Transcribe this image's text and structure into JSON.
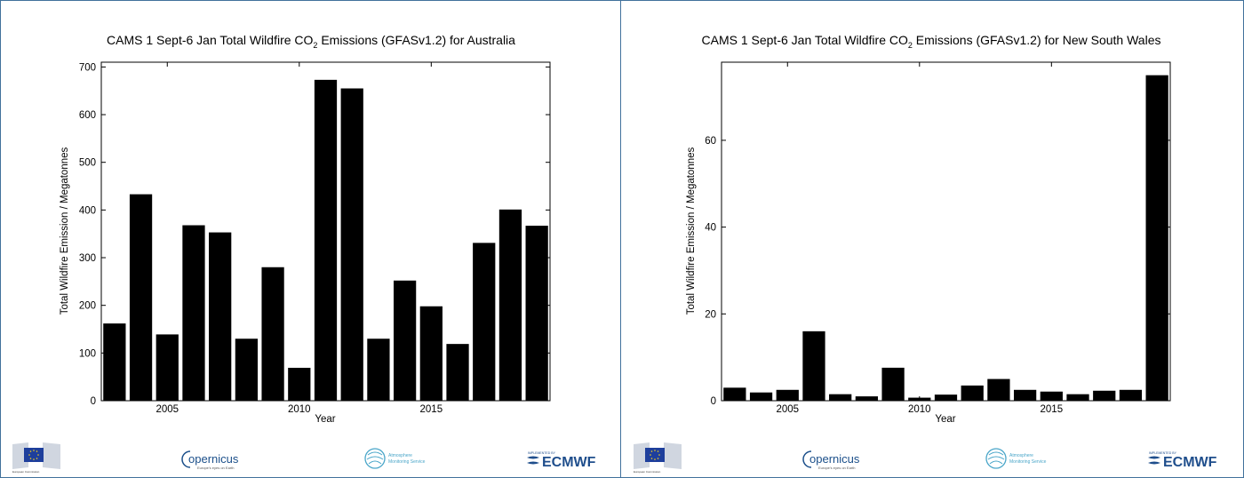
{
  "chart_data": [
    {
      "type": "bar",
      "title_main": "CAMS 1 Sept-6 Jan Total Wildfire CO",
      "title_sub": "2",
      "title_rest": " Emissions (GFASv1.2) for Australia",
      "xlabel": "Year",
      "ylabel": "Total Wildfire Emission / Megatonnes",
      "x": [
        2003,
        2004,
        2005,
        2006,
        2007,
        2008,
        2009,
        2010,
        2011,
        2012,
        2013,
        2014,
        2015,
        2016,
        2017,
        2018,
        2019
      ],
      "values": [
        162,
        433,
        139,
        368,
        353,
        130,
        280,
        69,
        673,
        655,
        130,
        252,
        198,
        119,
        331,
        401,
        367
      ],
      "xlim": [
        2002.5,
        2019.5
      ],
      "ylim": [
        0,
        710
      ],
      "xticks": [
        2005,
        2010,
        2015
      ],
      "yticks": [
        0,
        100,
        200,
        300,
        400,
        500,
        600,
        700
      ],
      "bar_color": "#000000",
      "grid": false
    },
    {
      "type": "bar",
      "title_main": "CAMS 1 Sept-6 Jan Total Wildfire CO",
      "title_sub": "2",
      "title_rest": " Emissions (GFASv1.2) for New South Wales",
      "xlabel": "Year",
      "ylabel": "Total Wildfire Emission / Megatonnes",
      "x": [
        2003,
        2004,
        2005,
        2006,
        2007,
        2008,
        2009,
        2010,
        2011,
        2012,
        2013,
        2014,
        2015,
        2016,
        2017,
        2018,
        2019
      ],
      "values": [
        3.0,
        1.9,
        2.5,
        16.0,
        1.5,
        1.0,
        7.6,
        0.7,
        1.4,
        3.5,
        5.0,
        2.5,
        2.1,
        1.5,
        2.3,
        2.5,
        75.0
      ],
      "xlim": [
        2002.5,
        2019.5
      ],
      "ylim": [
        0,
        78
      ],
      "xticks": [
        2005,
        2010,
        2015
      ],
      "yticks": [
        0,
        20,
        40,
        60
      ],
      "bar_color": "#000000",
      "grid": false
    }
  ],
  "footer": {
    "eu_caption": "European Commission",
    "copernicus": "opernicus",
    "copernicus_tagline": "Europe's eyes on Earth",
    "atmosphere_line1": "Atmosphere",
    "atmosphere_line2": "Monitoring Service",
    "ecmwf_small": "IMPLEMENTED BY",
    "ecmwf": "ECMWF"
  },
  "colors": {
    "frame": "#41719c",
    "eu_blue": "#1e3f9c",
    "eu_star": "#ffd617",
    "copernicus_blue": "#1b4f8a",
    "atmosphere_teal": "#4aa6c9",
    "ecmwf_blue": "#1f4e8c"
  }
}
